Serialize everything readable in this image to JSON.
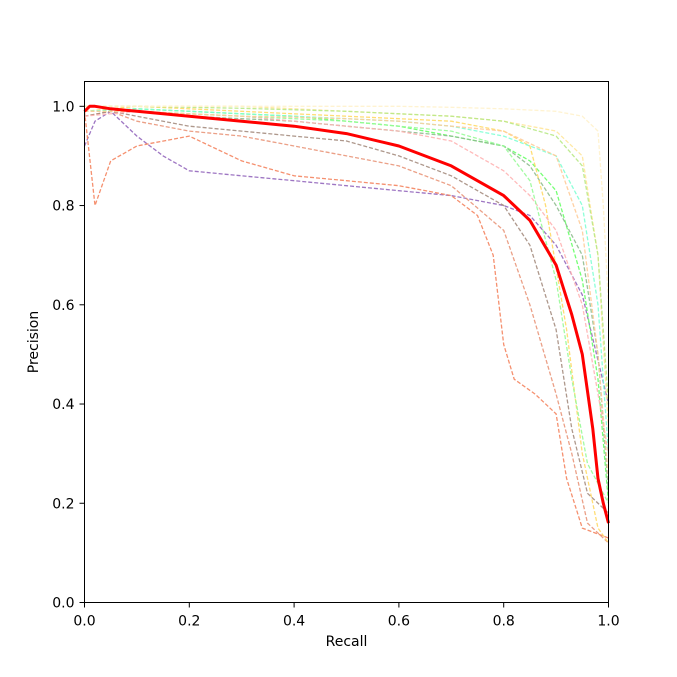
{
  "chart_data": {
    "type": "line",
    "title": "",
    "xlabel": "Recall",
    "ylabel": "Precision",
    "xlim": [
      0.0,
      1.0
    ],
    "ylim": [
      0.0,
      1.05
    ],
    "grid": false,
    "legend": "none",
    "xticks": [
      "0.0",
      "0.2",
      "0.4",
      "0.6",
      "0.8",
      "1.0"
    ],
    "yticks": [
      "0.0",
      "0.2",
      "0.4",
      "0.6",
      "0.8",
      "1.0"
    ],
    "series": [
      {
        "color": "#ff0000",
        "style": "solid",
        "x": [
          0.0,
          0.01,
          0.02,
          0.05,
          0.1,
          0.2,
          0.3,
          0.4,
          0.5,
          0.6,
          0.7,
          0.8,
          0.85,
          0.9,
          0.93,
          0.95,
          0.97,
          0.98,
          0.99,
          1.0
        ],
        "y": [
          0.99,
          1.0,
          1.0,
          0.995,
          0.99,
          0.98,
          0.97,
          0.96,
          0.945,
          0.92,
          0.88,
          0.82,
          0.77,
          0.68,
          0.58,
          0.5,
          0.35,
          0.25,
          0.2,
          0.16
        ]
      },
      {
        "color": "#9467bd",
        "style": "dashed",
        "x": [
          0.0,
          0.02,
          0.05,
          0.1,
          0.15,
          0.2,
          0.3,
          0.4,
          0.5,
          0.6,
          0.7,
          0.8,
          0.85,
          0.9,
          0.95,
          1.0
        ],
        "y": [
          0.92,
          0.97,
          0.99,
          0.94,
          0.9,
          0.87,
          0.86,
          0.85,
          0.84,
          0.83,
          0.82,
          0.8,
          0.78,
          0.72,
          0.62,
          0.4
        ]
      },
      {
        "color": "#f4845f",
        "style": "dashed",
        "x": [
          0.0,
          0.02,
          0.05,
          0.1,
          0.2,
          0.3,
          0.4,
          0.5,
          0.6,
          0.7,
          0.75,
          0.78,
          0.8,
          0.82,
          0.86,
          0.9,
          0.92,
          0.95,
          1.0
        ],
        "y": [
          0.99,
          0.8,
          0.89,
          0.92,
          0.94,
          0.89,
          0.86,
          0.85,
          0.84,
          0.82,
          0.78,
          0.7,
          0.52,
          0.45,
          0.42,
          0.38,
          0.25,
          0.15,
          0.13
        ]
      },
      {
        "color": "#e9967a",
        "style": "dashed",
        "x": [
          0.0,
          0.05,
          0.1,
          0.2,
          0.3,
          0.4,
          0.5,
          0.6,
          0.7,
          0.8,
          0.85,
          0.9,
          0.93,
          0.96,
          1.0
        ],
        "y": [
          0.98,
          0.99,
          0.97,
          0.95,
          0.94,
          0.92,
          0.9,
          0.88,
          0.84,
          0.75,
          0.6,
          0.42,
          0.3,
          0.16,
          0.12
        ]
      },
      {
        "color": "#66ff66",
        "style": "dashed",
        "x": [
          0.0,
          0.1,
          0.2,
          0.3,
          0.4,
          0.5,
          0.6,
          0.7,
          0.8,
          0.85,
          0.9,
          0.95,
          0.98,
          1.0
        ],
        "y": [
          0.99,
          0.995,
          0.99,
          0.985,
          0.98,
          0.97,
          0.96,
          0.94,
          0.92,
          0.89,
          0.83,
          0.65,
          0.45,
          0.2
        ]
      },
      {
        "color": "#8fbc8f",
        "style": "dashed",
        "x": [
          0.0,
          0.1,
          0.2,
          0.3,
          0.4,
          0.5,
          0.6,
          0.7,
          0.8,
          0.85,
          0.9,
          0.95,
          0.98,
          1.0
        ],
        "y": [
          0.99,
          0.99,
          0.98,
          0.975,
          0.97,
          0.96,
          0.95,
          0.94,
          0.92,
          0.88,
          0.8,
          0.7,
          0.5,
          0.22
        ]
      },
      {
        "color": "#a58d7f",
        "style": "dashed",
        "x": [
          0.0,
          0.05,
          0.1,
          0.2,
          0.3,
          0.4,
          0.5,
          0.6,
          0.7,
          0.8,
          0.85,
          0.9,
          0.93,
          0.96,
          1.0
        ],
        "y": [
          0.98,
          0.99,
          0.98,
          0.96,
          0.95,
          0.94,
          0.93,
          0.9,
          0.86,
          0.8,
          0.72,
          0.55,
          0.35,
          0.22,
          0.18
        ]
      },
      {
        "color": "#ffd966",
        "style": "dashed",
        "x": [
          0.0,
          0.1,
          0.2,
          0.3,
          0.4,
          0.5,
          0.6,
          0.7,
          0.8,
          0.85,
          0.88,
          0.92,
          0.95,
          0.98,
          1.0
        ],
        "y": [
          0.99,
          1.0,
          0.995,
          0.99,
          0.985,
          0.98,
          0.975,
          0.97,
          0.95,
          0.92,
          0.8,
          0.55,
          0.3,
          0.15,
          0.12
        ]
      },
      {
        "color": "#ffe699",
        "style": "dashed",
        "x": [
          0.0,
          0.1,
          0.2,
          0.3,
          0.4,
          0.5,
          0.6,
          0.7,
          0.8,
          0.9,
          0.95,
          0.98,
          1.0
        ],
        "y": [
          1.0,
          1.0,
          1.0,
          1.0,
          0.995,
          0.99,
          0.985,
          0.98,
          0.97,
          0.95,
          0.9,
          0.7,
          0.35
        ]
      },
      {
        "color": "#ffb3b3",
        "style": "dashed",
        "x": [
          0.0,
          0.1,
          0.2,
          0.3,
          0.4,
          0.5,
          0.6,
          0.7,
          0.75,
          0.8,
          0.85,
          0.9,
          0.95,
          1.0
        ],
        "y": [
          0.98,
          0.99,
          0.985,
          0.98,
          0.97,
          0.96,
          0.95,
          0.93,
          0.9,
          0.87,
          0.82,
          0.75,
          0.6,
          0.3
        ]
      },
      {
        "color": "#b8e986",
        "style": "dashed",
        "x": [
          0.0,
          0.1,
          0.2,
          0.3,
          0.4,
          0.5,
          0.6,
          0.7,
          0.8,
          0.9,
          0.95,
          0.98,
          1.0
        ],
        "y": [
          1.0,
          1.0,
          0.998,
          0.996,
          0.993,
          0.99,
          0.985,
          0.98,
          0.97,
          0.94,
          0.88,
          0.7,
          0.4
        ]
      },
      {
        "color": "#98fb98",
        "style": "dashed",
        "x": [
          0.0,
          0.1,
          0.2,
          0.3,
          0.4,
          0.5,
          0.6,
          0.7,
          0.8,
          0.85,
          0.9,
          0.93,
          0.96,
          1.0
        ],
        "y": [
          0.99,
          0.99,
          0.985,
          0.98,
          0.975,
          0.97,
          0.96,
          0.95,
          0.92,
          0.85,
          0.65,
          0.45,
          0.28,
          0.2
        ]
      },
      {
        "color": "#7fffd4",
        "style": "dashed",
        "x": [
          0.0,
          0.1,
          0.2,
          0.3,
          0.4,
          0.5,
          0.6,
          0.7,
          0.8,
          0.9,
          0.95,
          0.98,
          1.0
        ],
        "y": [
          0.99,
          0.995,
          0.99,
          0.985,
          0.98,
          0.975,
          0.97,
          0.96,
          0.94,
          0.9,
          0.8,
          0.6,
          0.3
        ]
      },
      {
        "color": "#fff2cc",
        "style": "dashed",
        "x": [
          0.0,
          0.1,
          0.2,
          0.3,
          0.4,
          0.5,
          0.6,
          0.7,
          0.8,
          0.9,
          0.95,
          0.98,
          0.99,
          1.0
        ],
        "y": [
          1.0,
          1.0,
          1.0,
          1.0,
          1.0,
          1.0,
          1.0,
          0.998,
          0.995,
          0.99,
          0.98,
          0.95,
          0.8,
          0.6
        ]
      },
      {
        "color": "#ffcc99",
        "style": "dashed",
        "x": [
          0.0,
          0.1,
          0.2,
          0.3,
          0.4,
          0.5,
          0.6,
          0.7,
          0.8,
          0.9,
          0.95,
          0.98,
          1.0
        ],
        "y": [
          0.99,
          0.99,
          0.985,
          0.98,
          0.978,
          0.975,
          0.97,
          0.96,
          0.95,
          0.9,
          0.75,
          0.5,
          0.25
        ]
      }
    ]
  }
}
